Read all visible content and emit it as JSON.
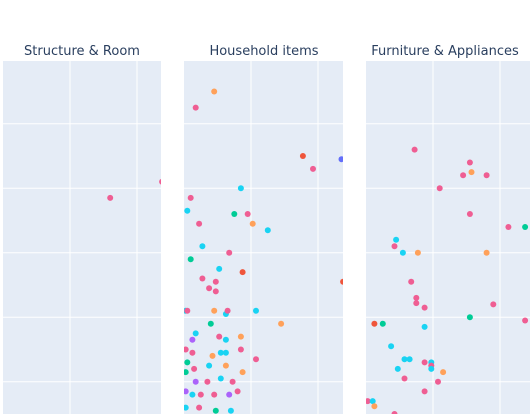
{
  "chart_data": {
    "type": "scatter",
    "facet_titles": [
      "Structure & Room",
      "Household items",
      "Furniture & Appliances"
    ],
    "grid": true,
    "legend": "none",
    "xlim": [
      0,
      4.8
    ],
    "ylim": [
      0,
      10.4
    ],
    "x_gridlines": [
      2,
      4
    ],
    "y_gridlines": [
      0.5,
      1.5,
      2.5,
      3.5,
      4.5,
      5.5,
      6.5,
      7.5,
      8.5,
      9.5
    ],
    "colors": {
      "pink": "#ef5e93",
      "cyan": "#19d3f3",
      "orange": "#ffa15a",
      "green": "#00cc96",
      "red": "#ef553b",
      "purple": "#ab63fa",
      "blue": "#636efa"
    },
    "panels": [
      {
        "title": "Structure & Room",
        "points": [
          {
            "x": 3.2,
            "y": 3.35,
            "c": "pink"
          },
          {
            "x": 4.75,
            "y": 3.6,
            "c": "pink"
          }
        ]
      },
      {
        "title": "Household items",
        "points": [
          {
            "x": 0.9,
            "y": 5.0,
            "c": "orange"
          },
          {
            "x": 0.35,
            "y": 4.75,
            "c": "pink"
          },
          {
            "x": 3.55,
            "y": 4.0,
            "c": "red"
          },
          {
            "x": 4.7,
            "y": 3.95,
            "c": "blue"
          },
          {
            "x": 3.85,
            "y": 3.8,
            "c": "pink"
          },
          {
            "x": 1.7,
            "y": 3.5,
            "c": "cyan"
          },
          {
            "x": 0.2,
            "y": 3.35,
            "c": "pink"
          },
          {
            "x": 0.1,
            "y": 3.15,
            "c": "cyan"
          },
          {
            "x": 1.5,
            "y": 3.1,
            "c": "green"
          },
          {
            "x": 1.9,
            "y": 3.1,
            "c": "pink"
          },
          {
            "x": 0.45,
            "y": 2.95,
            "c": "pink"
          },
          {
            "x": 2.05,
            "y": 2.95,
            "c": "orange"
          },
          {
            "x": 2.5,
            "y": 2.85,
            "c": "cyan"
          },
          {
            "x": 0.55,
            "y": 2.6,
            "c": "cyan"
          },
          {
            "x": 1.35,
            "y": 2.5,
            "c": "pink"
          },
          {
            "x": 0.2,
            "y": 2.4,
            "c": "green"
          },
          {
            "x": 1.05,
            "y": 2.25,
            "c": "cyan"
          },
          {
            "x": 1.75,
            "y": 2.2,
            "c": "red"
          },
          {
            "x": 0.55,
            "y": 2.1,
            "c": "pink"
          },
          {
            "x": 0.95,
            "y": 2.05,
            "c": "pink"
          },
          {
            "x": 4.75,
            "y": 2.05,
            "c": "red"
          },
          {
            "x": 0.75,
            "y": 1.95,
            "c": "pink"
          },
          {
            "x": 0.95,
            "y": 1.9,
            "c": "pink"
          },
          {
            "x": 0.05,
            "y": 1.6,
            "c": "cyan"
          },
          {
            "x": 0.1,
            "y": 1.6,
            "c": "pink"
          },
          {
            "x": 0.9,
            "y": 1.6,
            "c": "orange"
          },
          {
            "x": 1.25,
            "y": 1.55,
            "c": "cyan"
          },
          {
            "x": 1.3,
            "y": 1.6,
            "c": "pink"
          },
          {
            "x": 2.15,
            "y": 1.6,
            "c": "cyan"
          },
          {
            "x": 2.9,
            "y": 1.4,
            "c": "orange"
          },
          {
            "x": 0.8,
            "y": 1.4,
            "c": "green"
          },
          {
            "x": 0.35,
            "y": 1.25,
            "c": "cyan"
          },
          {
            "x": 0.25,
            "y": 1.15,
            "c": "purple"
          },
          {
            "x": 1.05,
            "y": 1.2,
            "c": "pink"
          },
          {
            "x": 1.25,
            "y": 1.15,
            "c": "cyan"
          },
          {
            "x": 1.7,
            "y": 1.2,
            "c": "orange"
          },
          {
            "x": 0.05,
            "y": 1.0,
            "c": "pink"
          },
          {
            "x": 1.7,
            "y": 1.0,
            "c": "pink"
          },
          {
            "x": 0.25,
            "y": 0.95,
            "c": "pink"
          },
          {
            "x": 1.1,
            "y": 0.95,
            "c": "cyan"
          },
          {
            "x": 1.25,
            "y": 0.95,
            "c": "cyan"
          },
          {
            "x": 0.85,
            "y": 0.9,
            "c": "orange"
          },
          {
            "x": 2.15,
            "y": 0.85,
            "c": "pink"
          },
          {
            "x": 0.1,
            "y": 0.8,
            "c": "green"
          },
          {
            "x": 0.3,
            "y": 0.7,
            "c": "pink"
          },
          {
            "x": 0.75,
            "y": 0.75,
            "c": "cyan"
          },
          {
            "x": 1.25,
            "y": 0.75,
            "c": "orange"
          },
          {
            "x": 1.75,
            "y": 0.65,
            "c": "orange"
          },
          {
            "x": 0.05,
            "y": 0.65,
            "c": "green"
          },
          {
            "x": 0.35,
            "y": 0.5,
            "c": "purple"
          },
          {
            "x": 0.7,
            "y": 0.5,
            "c": "pink"
          },
          {
            "x": 1.1,
            "y": 0.55,
            "c": "cyan"
          },
          {
            "x": 1.45,
            "y": 0.5,
            "c": "pink"
          },
          {
            "x": 0.05,
            "y": 0.35,
            "c": "purple"
          },
          {
            "x": 0.25,
            "y": 0.3,
            "c": "cyan"
          },
          {
            "x": 0.5,
            "y": 0.3,
            "c": "pink"
          },
          {
            "x": 0.9,
            "y": 0.3,
            "c": "pink"
          },
          {
            "x": 1.35,
            "y": 0.3,
            "c": "purple"
          },
          {
            "x": 1.6,
            "y": 0.35,
            "c": "pink"
          },
          {
            "x": 0.05,
            "y": 0.1,
            "c": "cyan"
          },
          {
            "x": 0.45,
            "y": 0.1,
            "c": "pink"
          },
          {
            "x": 0.95,
            "y": 0.05,
            "c": "green"
          },
          {
            "x": 1.4,
            "y": 0.05,
            "c": "cyan"
          }
        ]
      },
      {
        "title": "Furniture & Appliances",
        "points": [
          {
            "x": 1.45,
            "y": 4.1,
            "c": "pink"
          },
          {
            "x": 3.1,
            "y": 3.9,
            "c": "pink"
          },
          {
            "x": 3.15,
            "y": 3.75,
            "c": "orange"
          },
          {
            "x": 2.9,
            "y": 3.7,
            "c": "pink"
          },
          {
            "x": 3.6,
            "y": 3.7,
            "c": "pink"
          },
          {
            "x": 2.2,
            "y": 3.5,
            "c": "pink"
          },
          {
            "x": 3.1,
            "y": 3.1,
            "c": "pink"
          },
          {
            "x": 4.25,
            "y": 2.9,
            "c": "pink"
          },
          {
            "x": 4.75,
            "y": 2.9,
            "c": "green"
          },
          {
            "x": 0.9,
            "y": 2.7,
            "c": "cyan"
          },
          {
            "x": 0.85,
            "y": 2.6,
            "c": "pink"
          },
          {
            "x": 1.1,
            "y": 2.5,
            "c": "cyan"
          },
          {
            "x": 1.55,
            "y": 2.5,
            "c": "orange"
          },
          {
            "x": 3.6,
            "y": 2.5,
            "c": "orange"
          },
          {
            "x": 1.35,
            "y": 2.05,
            "c": "pink"
          },
          {
            "x": 1.5,
            "y": 1.8,
            "c": "pink"
          },
          {
            "x": 1.5,
            "y": 1.72,
            "c": "pink"
          },
          {
            "x": 1.75,
            "y": 1.65,
            "c": "pink"
          },
          {
            "x": 3.8,
            "y": 1.7,
            "c": "pink"
          },
          {
            "x": 3.1,
            "y": 1.5,
            "c": "green"
          },
          {
            "x": 0.25,
            "y": 1.4,
            "c": "red"
          },
          {
            "x": 0.5,
            "y": 1.4,
            "c": "green"
          },
          {
            "x": 1.75,
            "y": 1.35,
            "c": "cyan"
          },
          {
            "x": 4.75,
            "y": 1.45,
            "c": "pink"
          },
          {
            "x": 0.75,
            "y": 1.05,
            "c": "cyan"
          },
          {
            "x": 1.15,
            "y": 0.85,
            "c": "cyan"
          },
          {
            "x": 1.3,
            "y": 0.85,
            "c": "cyan"
          },
          {
            "x": 1.75,
            "y": 0.8,
            "c": "pink"
          },
          {
            "x": 1.95,
            "y": 0.8,
            "c": "cyan"
          },
          {
            "x": 1.95,
            "y": 0.75,
            "c": "pink"
          },
          {
            "x": 0.95,
            "y": 0.7,
            "c": "cyan"
          },
          {
            "x": 1.95,
            "y": 0.7,
            "c": "cyan"
          },
          {
            "x": 2.3,
            "y": 0.65,
            "c": "orange"
          },
          {
            "x": 1.15,
            "y": 0.55,
            "c": "pink"
          },
          {
            "x": 2.15,
            "y": 0.5,
            "c": "pink"
          },
          {
            "x": 1.75,
            "y": 0.35,
            "c": "pink"
          },
          {
            "x": 0.05,
            "y": 0.2,
            "c": "pink"
          },
          {
            "x": 0.2,
            "y": 0.2,
            "c": "cyan"
          },
          {
            "x": 0.25,
            "y": 0.12,
            "c": "orange"
          },
          {
            "x": 0.85,
            "y": 0.0,
            "c": "pink"
          }
        ]
      }
    ]
  }
}
